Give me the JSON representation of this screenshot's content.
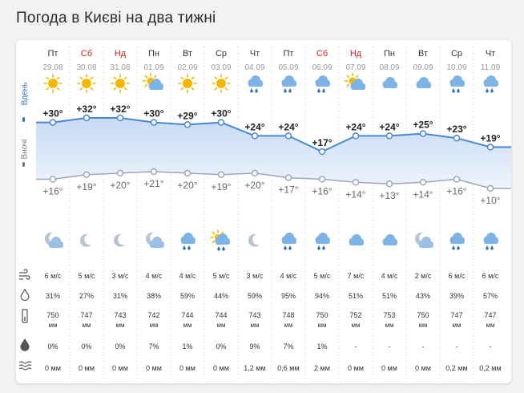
{
  "title": "Погода в Києві на два тижні",
  "labels": {
    "day": "Вдень",
    "night": "Вночі"
  },
  "colors": {
    "weekend": "#d62020",
    "weekday": "#333333",
    "date": "#9a9a9a",
    "day_line": "#4a86d4",
    "night_line": "#9aa8b8",
    "sun": "#f5b800",
    "cloud": "#7eb3e6",
    "moon": "#b8c4d4",
    "rain": "#2f6fbf"
  },
  "row_icons": [
    "wind-icon",
    "humidity-icon",
    "pressure-icon",
    "rain-chance-icon",
    "precipitation-icon"
  ],
  "days": [
    {
      "dow": "Пт",
      "date": "29.08",
      "weekend": false,
      "day_icon": "sun-icon",
      "night_icon": "moon-cloud-icon",
      "t_day": "+30°",
      "t_night": "+16°",
      "td": 30,
      "tn": 16,
      "wind": "6 м/с",
      "hum": "31%",
      "press": "750",
      "press_unit": "мм",
      "prob": "0%",
      "prec": "0 мм"
    },
    {
      "dow": "Сб",
      "date": "30.08",
      "weekend": true,
      "day_icon": "sun-icon",
      "night_icon": "moon-icon",
      "t_day": "+32°",
      "t_night": "+19°",
      "td": 32,
      "tn": 19,
      "wind": "5 м/с",
      "hum": "27%",
      "press": "747",
      "press_unit": "мм",
      "prob": "0%",
      "prec": "0 мм"
    },
    {
      "dow": "Нд",
      "date": "31.08",
      "weekend": true,
      "day_icon": "sun-icon",
      "night_icon": "moon-icon",
      "t_day": "+32°",
      "t_night": "+20°",
      "td": 32,
      "tn": 20,
      "wind": "3 м/с",
      "hum": "31%",
      "press": "743",
      "press_unit": "мм",
      "prob": "0%",
      "prec": "0 мм"
    },
    {
      "dow": "Пн",
      "date": "01.09",
      "weekend": false,
      "day_icon": "sun-cloud-icon",
      "night_icon": "moon-cloud-icon",
      "t_day": "+30°",
      "t_night": "+21°",
      "td": 30,
      "tn": 21,
      "wind": "4 м/с",
      "hum": "38%",
      "press": "742",
      "press_unit": "мм",
      "prob": "7%",
      "prec": "0 мм"
    },
    {
      "dow": "Вт",
      "date": "02.09",
      "weekend": false,
      "day_icon": "sun-icon",
      "night_icon": "rain-icon",
      "t_day": "+29°",
      "t_night": "+20°",
      "td": 29,
      "tn": 20,
      "wind": "4 м/с",
      "hum": "59%",
      "press": "744",
      "press_unit": "мм",
      "prob": "1%",
      "prec": "0 мм"
    },
    {
      "dow": "Ср",
      "date": "03.09",
      "weekend": false,
      "day_icon": "sun-icon",
      "night_icon": "sun-rain-icon",
      "t_day": "+30°",
      "t_night": "+19°",
      "td": 30,
      "tn": 19,
      "wind": "5 м/с",
      "hum": "44%",
      "press": "744",
      "press_unit": "мм",
      "prob": "0%",
      "prec": "0 мм"
    },
    {
      "dow": "Чт",
      "date": "04.09",
      "weekend": false,
      "day_icon": "rain-icon",
      "night_icon": "moon-icon",
      "t_day": "+24°",
      "t_night": "+20°",
      "td": 24,
      "tn": 20,
      "wind": "3 м/с",
      "hum": "59%",
      "press": "743",
      "press_unit": "мм",
      "prob": "9%",
      "prec": "1,2 мм"
    },
    {
      "dow": "Пт",
      "date": "05.09",
      "weekend": false,
      "day_icon": "rain-icon",
      "night_icon": "rain-icon",
      "t_day": "+24°",
      "t_night": "+17°",
      "td": 24,
      "tn": 17,
      "wind": "4 м/с",
      "hum": "95%",
      "press": "748",
      "press_unit": "мм",
      "prob": "7%",
      "prec": "0,6 мм"
    },
    {
      "dow": "Сб",
      "date": "06.09",
      "weekend": true,
      "day_icon": "rain-icon",
      "night_icon": "rain-icon",
      "t_day": "+17°",
      "t_night": "+16°",
      "td": 17,
      "tn": 16,
      "wind": "5 м/с",
      "hum": "94%",
      "press": "750",
      "press_unit": "мм",
      "prob": "1%",
      "prec": "2 мм"
    },
    {
      "dow": "Нд",
      "date": "07.09",
      "weekend": true,
      "day_icon": "sun-cloud-icon",
      "night_icon": "cloud-icon",
      "t_day": "+24°",
      "t_night": "+14°",
      "td": 24,
      "tn": 14,
      "wind": "7 м/с",
      "hum": "51%",
      "press": "752",
      "press_unit": "мм",
      "prob": "-",
      "prec": "0 мм"
    },
    {
      "dow": "Пн",
      "date": "08.09",
      "weekend": false,
      "day_icon": "cloud-icon",
      "night_icon": "cloud-icon",
      "t_day": "+24°",
      "t_night": "+13°",
      "td": 24,
      "tn": 13,
      "wind": "4 м/с",
      "hum": "51%",
      "press": "753",
      "press_unit": "мм",
      "prob": "-",
      "prec": "0 мм"
    },
    {
      "dow": "Вт",
      "date": "09.09",
      "weekend": false,
      "day_icon": "cloud-icon",
      "night_icon": "moon-cloud-icon",
      "t_day": "+25°",
      "t_night": "+14°",
      "td": 25,
      "tn": 14,
      "wind": "2 м/с",
      "hum": "43%",
      "press": "750",
      "press_unit": "мм",
      "prob": "-",
      "prec": "0 мм"
    },
    {
      "dow": "Ср",
      "date": "10.09",
      "weekend": false,
      "day_icon": "rain-icon",
      "night_icon": "rain-icon",
      "t_day": "+23°",
      "t_night": "+16°",
      "td": 23,
      "tn": 16,
      "wind": "6 м/с",
      "hum": "39%",
      "press": "747",
      "press_unit": "мм",
      "prob": "-",
      "prec": "0,2 мм"
    },
    {
      "dow": "Чт",
      "date": "11.09",
      "weekend": false,
      "day_icon": "rain-icon",
      "night_icon": "rain-icon",
      "t_day": "+19°",
      "t_night": "+10°",
      "td": 19,
      "tn": 10,
      "wind": "6 м/с",
      "hum": "57%",
      "press": "747",
      "press_unit": "мм",
      "prob": "-",
      "prec": "0,2 мм"
    }
  ]
}
